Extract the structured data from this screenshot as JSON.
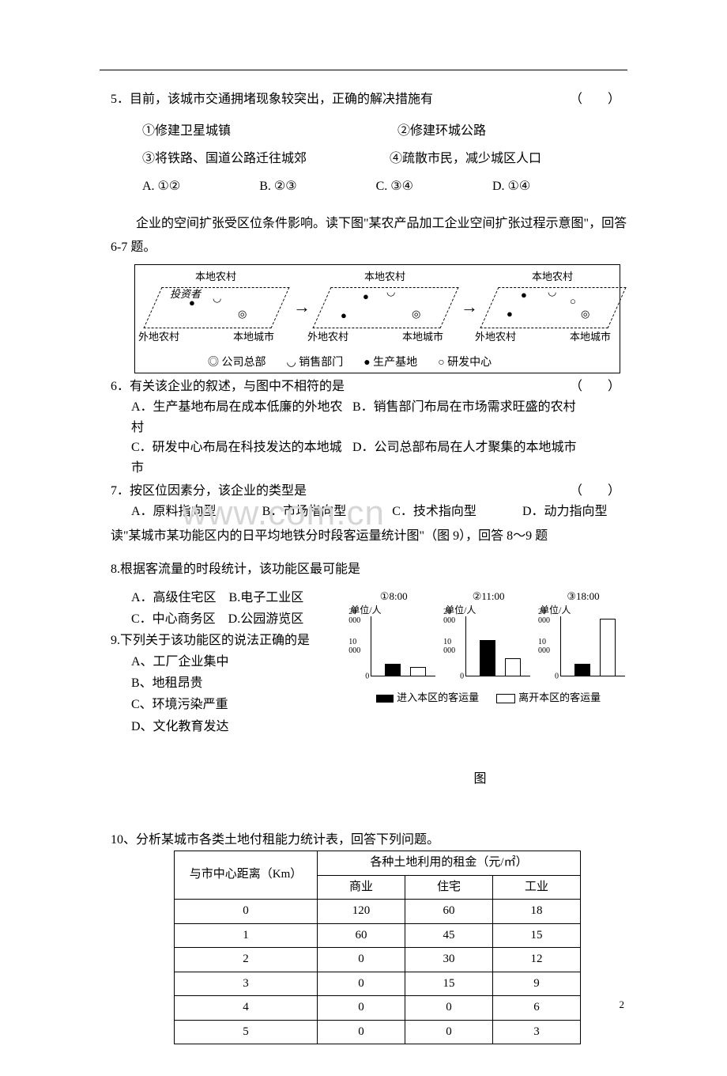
{
  "q5": {
    "stem": "5．目前，该城市交通拥堵现象较突出，正确的解决措施有",
    "paren": "（　　）",
    "opts": [
      "①修建卫星城镇",
      "②修建环城公路",
      "③将铁路、国道公路迁往城郊",
      "④疏散市民，减少城区人口"
    ],
    "choices": [
      "A.  ①②",
      "B.  ②③",
      "C.  ③④",
      "D.  ①④"
    ]
  },
  "intro67": "企业的空间扩张受区位条件影响。读下图\"某农产品加工企业空间扩张过程示意图\"，回答 6-7 题。",
  "diagram": {
    "labels": {
      "bdnc": "本地农村",
      "tzz": "投资者",
      "wdnc": "外地农村",
      "bdcs": "本地城市"
    },
    "legend": [
      "◎  公司总部",
      "◡  销售部门",
      "●  生产基地",
      "○  研发中心"
    ]
  },
  "q6": {
    "stem": "6．有关该企业的叙述，与图中不相符的是",
    "paren": "（　　）",
    "a": "A．生产基地布局在成本低廉的外地农村",
    "b": "B．销售部门布局在市场需求旺盛的农村",
    "c": "C．研发中心布局在科技发达的本地城市",
    "d": "D．公司总部布局在人才聚集的本地城市"
  },
  "q7": {
    "stem": "7．按区位因素分，该企业的类型是",
    "paren": "（　　）",
    "choices": [
      "A．原料指向型",
      "B．市场指向型",
      "C．技术指向型",
      "D．动力指向型"
    ]
  },
  "intro89": "读\"某城市某功能区内的日平均地铁分时段客运量统计图\"（图 9），回答 8～9 题",
  "watermark": "www.com.cn",
  "q8": {
    "stem": "8.根据客流量的时段统计，该功能区最可能是",
    "a": "A．高级住宅区　B.电子工业区",
    "c": "C．中心商务区　D.公园游览区"
  },
  "q9": {
    "stem": "9.下列关于该功能区的说法正确的是",
    "a": "A、工厂企业集中",
    "b": "B、地租昂贵",
    "c": "C、环境污染严重",
    "d": "D、文化教育发达"
  },
  "charts": {
    "unit": "单位/人",
    "ticks": {
      "y20000": "20 000",
      "y10000": "10 000",
      "y0": "0"
    },
    "series": [
      {
        "title": "①8:00",
        "in": 4000,
        "out": 3000
      },
      {
        "title": "②11:00",
        "in": 12000,
        "out": 6000
      },
      {
        "title": "③18:00",
        "in": 4000,
        "out": 19000
      }
    ],
    "legend": {
      "in": "进入本区的客运量",
      "out": "离开本区的客运量"
    },
    "figlabel": "图"
  },
  "q10": {
    "stem": "10、分析某城市各类土地付租能力统计表，回答下列问题。",
    "head_dist": "与市中心距离（Km）",
    "head_rent": "各种土地利用的租金（元/㎡）",
    "cols": [
      "商业",
      "住宅",
      "工业"
    ],
    "rows": [
      {
        "d": "0",
        "v": [
          "120",
          "60",
          "18"
        ]
      },
      {
        "d": "1",
        "v": [
          "60",
          "45",
          "15"
        ]
      },
      {
        "d": "2",
        "v": [
          "0",
          "30",
          "12"
        ]
      },
      {
        "d": "3",
        "v": [
          "0",
          "15",
          "9"
        ]
      },
      {
        "d": "4",
        "v": [
          "0",
          "0",
          "6"
        ]
      },
      {
        "d": "5",
        "v": [
          "0",
          "0",
          "3"
        ]
      }
    ]
  },
  "pagenum": "2"
}
